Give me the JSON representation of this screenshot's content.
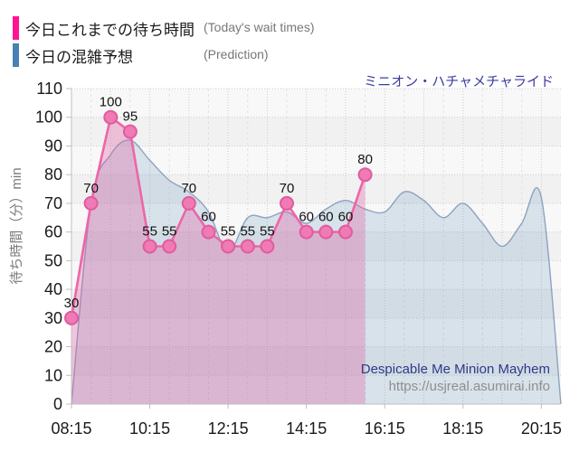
{
  "title": "ミニオン・ハチャメチャライド",
  "watermark": {
    "line1": "Despicable Me Minion Mayhem",
    "line2": "https://usjreal.asumirai.info"
  },
  "colors": {
    "plot_band_light": "#f8f8f8",
    "plot_band_dark": "#f1f1f1",
    "grid_major": "#cccccc",
    "grid_minor": "#e2e2e2",
    "axis": "#bfbfbf",
    "tick_label": "#1a1a1a",
    "data_label": "#111111",
    "title_text": "#3c3c9c",
    "watermark_name": "#2e3a87",
    "watermark_url": "#8f8f8f"
  },
  "chart_data": {
    "type": "area",
    "title": "ミニオン・ハチャメチャライド",
    "xlabel": "",
    "ylabel": "待ち時間（分）min",
    "ylim": [
      0,
      110
    ],
    "ytick_step": 10,
    "xtick_labels": [
      "08:15",
      "10:15",
      "12:15",
      "14:15",
      "16:15",
      "18:15",
      "20:15"
    ],
    "x_start": "08:15",
    "x_end": "20:45",
    "grid": true,
    "legend_position": "top-left",
    "series": [
      {
        "name": "今日これまでの待ち時間",
        "name_en": "(Today's wait times)",
        "type": "line-area",
        "smooth": false,
        "show_point_labels": true,
        "color_swatch": "#ff1493",
        "color_line": "#ec66a8",
        "color_fill": "rgba(224,95,165,0.33)",
        "color_point": "#f07ab4",
        "color_point_border": "#e05b9f",
        "x": [
          "08:15",
          "08:45",
          "09:15",
          "09:45",
          "10:15",
          "10:45",
          "11:15",
          "11:45",
          "12:15",
          "12:45",
          "13:15",
          "13:45",
          "14:15",
          "14:45",
          "15:15",
          "15:45"
        ],
        "values": [
          30,
          70,
          100,
          95,
          55,
          55,
          70,
          60,
          55,
          55,
          55,
          70,
          60,
          60,
          60,
          80
        ]
      },
      {
        "name": "今日の混雑予想",
        "name_en": "(Prediction)",
        "type": "area",
        "smooth": true,
        "show_point_labels": false,
        "color_swatch": "#4682b4",
        "color_line": "rgba(130,155,185,0.9)",
        "color_fill": "rgba(70,130,180,0.18)",
        "x": [
          "08:15",
          "08:45",
          "09:15",
          "09:45",
          "10:15",
          "10:45",
          "11:15",
          "11:45",
          "12:15",
          "12:45",
          "13:15",
          "13:45",
          "14:15",
          "14:45",
          "15:15",
          "15:45",
          "16:15",
          "16:45",
          "17:15",
          "17:45",
          "18:15",
          "18:45",
          "19:15",
          "19:45",
          "20:15",
          "20:45"
        ],
        "values": [
          0,
          70,
          87,
          92,
          85,
          78,
          74,
          67,
          53,
          65,
          65,
          67,
          63,
          68,
          71,
          68,
          67,
          74,
          71,
          65,
          70,
          63,
          55,
          63,
          72,
          0
        ]
      }
    ]
  }
}
